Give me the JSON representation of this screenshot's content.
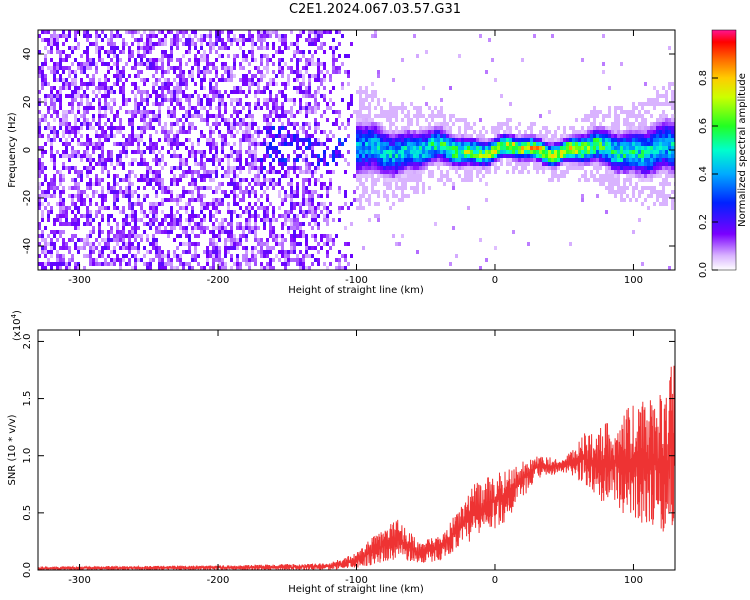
{
  "title": "C2E1.2024.067.03.57.G31",
  "chart_data": [
    {
      "type": "heatmap",
      "xlabel": "Height of straight line (km)",
      "ylabel": "Frequency (Hz)",
      "xlim": [
        -330,
        130
      ],
      "ylim": [
        -50,
        50
      ],
      "xticks": [
        -300,
        -200,
        -100,
        0,
        100
      ],
      "yticks": [
        -40,
        -20,
        0,
        20,
        40
      ],
      "colorbar": {
        "label": "Normalized spectral amplitude",
        "range": [
          0.0,
          1.0
        ],
        "ticks": [
          0.0,
          0.2,
          0.4,
          0.6,
          0.8
        ]
      },
      "signal_band": {
        "note_center_hz": 0,
        "profile": [
          {
            "x": -330,
            "amplitude": 0.15,
            "spread_hz": 50
          },
          {
            "x": -200,
            "amplitude": 0.2,
            "spread_hz": 50
          },
          {
            "x": -140,
            "amplitude": 0.35,
            "spread_hz": 20
          },
          {
            "x": -100,
            "amplitude": 0.45,
            "spread_hz": 12
          },
          {
            "x": -50,
            "amplitude": 0.55,
            "spread_hz": 8
          },
          {
            "x": 0,
            "amplitude": 0.8,
            "spread_hz": 5
          },
          {
            "x": 50,
            "amplitude": 0.9,
            "spread_hz": 5
          },
          {
            "x": 80,
            "amplitude": 0.6,
            "spread_hz": 8
          },
          {
            "x": 130,
            "amplitude": 0.5,
            "spread_hz": 12
          }
        ]
      },
      "grid": false
    },
    {
      "type": "line",
      "xlabel": "Height of straight line (km)",
      "ylabel": "SNR (10 * v/v)",
      "y_multiplier": "(x10",
      "y_multiplier_exp": "4",
      "y_multiplier_close": ")",
      "xlim": [
        -330,
        130
      ],
      "ylim": [
        0,
        2.1
      ],
      "xticks": [
        -300,
        -200,
        -100,
        0,
        100
      ],
      "yticks": [
        "0.0",
        "0.5",
        "1.0",
        "1.5",
        "2.0"
      ],
      "color": "#ee3333",
      "series": [
        {
          "envelope": [
            {
              "x": -330,
              "low": 0.0,
              "high": 0.03
            },
            {
              "x": -200,
              "low": 0.0,
              "high": 0.04
            },
            {
              "x": -120,
              "low": 0.0,
              "high": 0.06
            },
            {
              "x": -100,
              "low": 0.02,
              "high": 0.15
            },
            {
              "x": -85,
              "low": 0.05,
              "high": 0.33
            },
            {
              "x": -70,
              "low": 0.1,
              "high": 0.45
            },
            {
              "x": -55,
              "low": 0.05,
              "high": 0.25
            },
            {
              "x": -40,
              "low": 0.08,
              "high": 0.3
            },
            {
              "x": -25,
              "low": 0.2,
              "high": 0.55
            },
            {
              "x": -15,
              "low": 0.25,
              "high": 0.75
            },
            {
              "x": 0,
              "low": 0.35,
              "high": 0.85
            },
            {
              "x": 10,
              "low": 0.45,
              "high": 0.9
            },
            {
              "x": 30,
              "low": 0.8,
              "high": 1.0
            },
            {
              "x": 50,
              "low": 0.85,
              "high": 0.97
            },
            {
              "x": 65,
              "low": 0.75,
              "high": 1.2
            },
            {
              "x": 80,
              "low": 0.55,
              "high": 1.3
            },
            {
              "x": 100,
              "low": 0.45,
              "high": 1.45
            },
            {
              "x": 115,
              "low": 0.35,
              "high": 1.5
            },
            {
              "x": 125,
              "low": 0.3,
              "high": 1.6
            },
            {
              "x": 130,
              "low": 0.4,
              "high": 2.1
            }
          ]
        }
      ],
      "grid": false
    }
  ]
}
